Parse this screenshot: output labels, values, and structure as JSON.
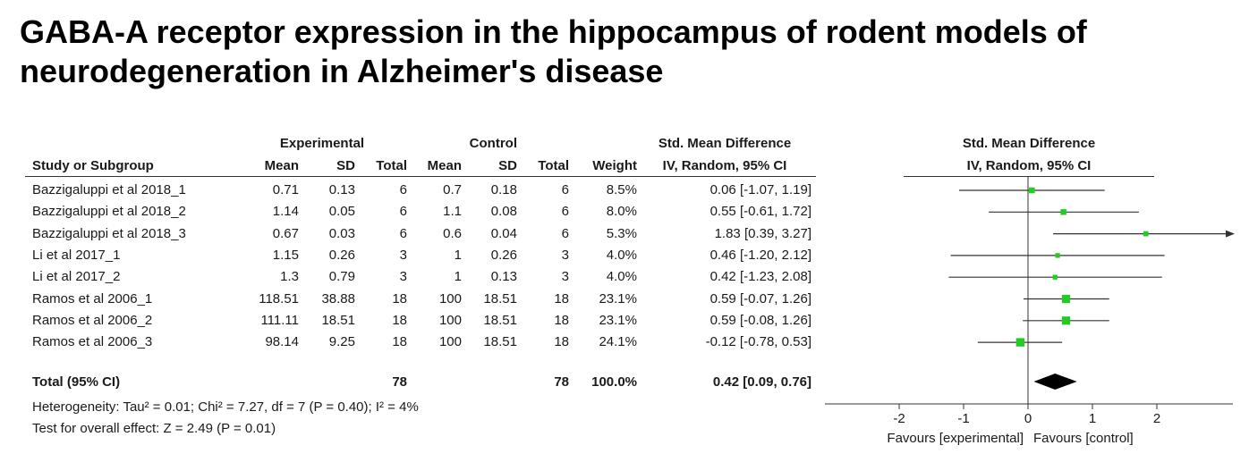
{
  "title": {
    "line1": "GABA-A receptor expression in the hippocampus of rodent models of",
    "line2": "neurodegeneration in Alzheimer's disease"
  },
  "headers": {
    "experimental": "Experimental",
    "control": "Control",
    "smd": "Std. Mean Difference",
    "study": "Study or Subgroup",
    "mean": "Mean",
    "sd": "SD",
    "total": "Total",
    "weight": "Weight",
    "method": "IV, Random, 95% CI",
    "plot_smd": "Std. Mean Difference",
    "plot_method": "IV, Random, 95% CI"
  },
  "studies": [
    {
      "name": "Bazzigaluppi et al 2018_1",
      "exp_mean": "0.71",
      "exp_sd": "0.13",
      "exp_total": "6",
      "ctl_mean": "0.7",
      "ctl_sd": "0.18",
      "ctl_total": "6",
      "weight": "8.5%",
      "ci_text": "0.06 [-1.07, 1.19]"
    },
    {
      "name": "Bazzigaluppi et al 2018_2",
      "exp_mean": "1.14",
      "exp_sd": "0.05",
      "exp_total": "6",
      "ctl_mean": "1.1",
      "ctl_sd": "0.08",
      "ctl_total": "6",
      "weight": "8.0%",
      "ci_text": "0.55 [-0.61, 1.72]"
    },
    {
      "name": "Bazzigaluppi et al 2018_3",
      "exp_mean": "0.67",
      "exp_sd": "0.03",
      "exp_total": "6",
      "ctl_mean": "0.6",
      "ctl_sd": "0.04",
      "ctl_total": "6",
      "weight": "5.3%",
      "ci_text": "1.83 [0.39, 3.27]"
    },
    {
      "name": "Li et al 2017_1",
      "exp_mean": "1.15",
      "exp_sd": "0.26",
      "exp_total": "3",
      "ctl_mean": "1",
      "ctl_sd": "0.26",
      "ctl_total": "3",
      "weight": "4.0%",
      "ci_text": "0.46 [-1.20, 2.12]"
    },
    {
      "name": "Li et al 2017_2",
      "exp_mean": "1.3",
      "exp_sd": "0.79",
      "exp_total": "3",
      "ctl_mean": "1",
      "ctl_sd": "0.13",
      "ctl_total": "3",
      "weight": "4.0%",
      "ci_text": "0.42 [-1.23, 2.08]"
    },
    {
      "name": "Ramos et al 2006_1",
      "exp_mean": "118.51",
      "exp_sd": "38.88",
      "exp_total": "18",
      "ctl_mean": "100",
      "ctl_sd": "18.51",
      "ctl_total": "18",
      "weight": "23.1%",
      "ci_text": "0.59 [-0.07, 1.26]"
    },
    {
      "name": "Ramos et al 2006_2",
      "exp_mean": "111.11",
      "exp_sd": "18.51",
      "exp_total": "18",
      "ctl_mean": "100",
      "ctl_sd": "18.51",
      "ctl_total": "18",
      "weight": "23.1%",
      "ci_text": "0.59 [-0.08, 1.26]"
    },
    {
      "name": "Ramos et al 2006_3",
      "exp_mean": "98.14",
      "exp_sd": "9.25",
      "exp_total": "18",
      "ctl_mean": "100",
      "ctl_sd": "18.51",
      "ctl_total": "18",
      "weight": "24.1%",
      "ci_text": "-0.12 [-0.78, 0.53]"
    }
  ],
  "total": {
    "label": "Total (95% CI)",
    "exp_total": "78",
    "ctl_total": "78",
    "weight": "100.0%",
    "ci_text": "0.42 [0.09, 0.76]"
  },
  "heterogeneity": "Heterogeneity: Tau² = 0.01; Chi² = 7.27, df = 7 (P = 0.40); I² = 4%",
  "overall_test": "Test for overall effect: Z = 2.49 (P = 0.01)",
  "axis": {
    "favours_experimental": "Favours [experimental]",
    "favours_control": "Favours [control]"
  },
  "colors": {
    "marker": "#22cc22",
    "diamond": "#000000",
    "line": "#333333"
  },
  "chart_data": {
    "type": "forest",
    "xlim": [
      -2,
      2
    ],
    "xticks": [
      "-2",
      "-1",
      "0",
      "1",
      "2"
    ],
    "null_value": 0,
    "points": [
      {
        "estimate": 0.06,
        "lower": -1.07,
        "upper": 1.19,
        "weight": 8.5
      },
      {
        "estimate": 0.55,
        "lower": -0.61,
        "upper": 1.72,
        "weight": 8.0
      },
      {
        "estimate": 1.83,
        "lower": 0.39,
        "upper": 3.27,
        "weight": 5.3
      },
      {
        "estimate": 0.46,
        "lower": -1.2,
        "upper": 2.12,
        "weight": 4.0
      },
      {
        "estimate": 0.42,
        "lower": -1.23,
        "upper": 2.08,
        "weight": 4.0
      },
      {
        "estimate": 0.59,
        "lower": -0.07,
        "upper": 1.26,
        "weight": 23.1
      },
      {
        "estimate": 0.59,
        "lower": -0.08,
        "upper": 1.26,
        "weight": 23.1
      },
      {
        "estimate": -0.12,
        "lower": -0.78,
        "upper": 0.53,
        "weight": 24.1
      }
    ],
    "pooled": {
      "estimate": 0.42,
      "lower": 0.09,
      "upper": 0.76
    }
  }
}
